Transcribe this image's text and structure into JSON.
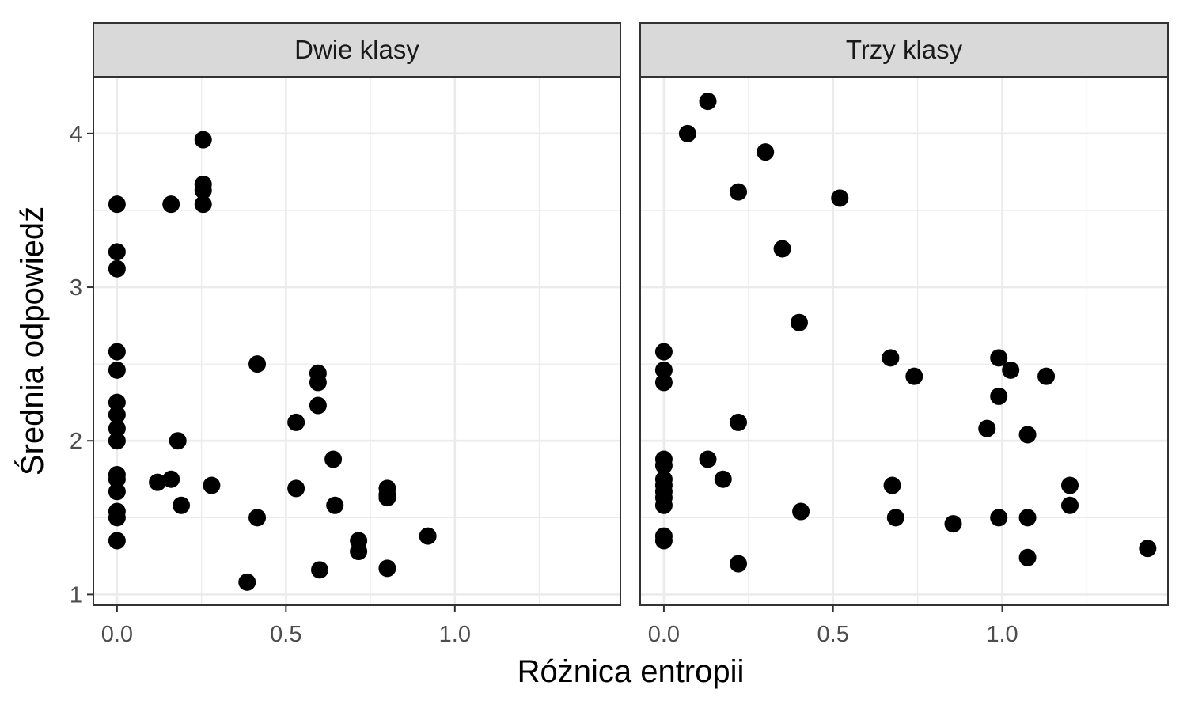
{
  "chart_data": {
    "type": "scatter",
    "xlabel": "Różnica entropii",
    "ylabel": "Średnia odpowiedź",
    "xlim": [
      -0.07,
      1.49
    ],
    "ylim": [
      0.93,
      4.37
    ],
    "x_ticks": [
      "0.0",
      "0.5",
      "1.0"
    ],
    "x_tick_values": [
      0.0,
      0.5,
      1.0
    ],
    "y_ticks": [
      "1",
      "2",
      "3",
      "4"
    ],
    "y_tick_values": [
      1,
      2,
      3,
      4
    ],
    "grid": true,
    "point_color": "#000000",
    "panel_border_color": "#333333",
    "strip_fill": "#d9d9d9",
    "grid_color": "#ebebeb",
    "facets": [
      {
        "strip_label": "Dwie klasy",
        "points": [
          [
            0.0,
            3.54
          ],
          [
            0.0,
            3.23
          ],
          [
            0.0,
            3.12
          ],
          [
            0.0,
            2.58
          ],
          [
            0.0,
            2.46
          ],
          [
            0.0,
            2.25
          ],
          [
            0.0,
            2.17
          ],
          [
            0.0,
            2.08
          ],
          [
            0.0,
            2.0
          ],
          [
            0.0,
            1.78
          ],
          [
            0.0,
            1.75
          ],
          [
            0.0,
            1.67
          ],
          [
            0.0,
            1.54
          ],
          [
            0.0,
            1.5
          ],
          [
            0.0,
            1.35
          ],
          [
            0.12,
            1.73
          ],
          [
            0.16,
            1.75
          ],
          [
            0.16,
            3.54
          ],
          [
            0.18,
            2.0
          ],
          [
            0.19,
            1.58
          ],
          [
            0.255,
            3.96
          ],
          [
            0.255,
            3.67
          ],
          [
            0.255,
            3.63
          ],
          [
            0.255,
            3.54
          ],
          [
            0.28,
            1.71
          ],
          [
            0.385,
            1.08
          ],
          [
            0.415,
            2.5
          ],
          [
            0.415,
            1.5
          ],
          [
            0.53,
            2.12
          ],
          [
            0.53,
            1.69
          ],
          [
            0.595,
            2.44
          ],
          [
            0.595,
            2.38
          ],
          [
            0.595,
            2.23
          ],
          [
            0.6,
            1.16
          ],
          [
            0.64,
            1.88
          ],
          [
            0.645,
            1.58
          ],
          [
            0.715,
            1.35
          ],
          [
            0.715,
            1.28
          ],
          [
            0.8,
            1.69
          ],
          [
            0.8,
            1.65
          ],
          [
            0.8,
            1.63
          ],
          [
            0.8,
            1.17
          ],
          [
            0.92,
            1.38
          ]
        ]
      },
      {
        "strip_label": "Trzy klasy",
        "points": [
          [
            0.0,
            2.58
          ],
          [
            0.0,
            2.46
          ],
          [
            0.0,
            2.38
          ],
          [
            0.0,
            1.88
          ],
          [
            0.0,
            1.84
          ],
          [
            0.0,
            1.75
          ],
          [
            0.0,
            1.71
          ],
          [
            0.0,
            1.67
          ],
          [
            0.0,
            1.63
          ],
          [
            0.0,
            1.58
          ],
          [
            0.0,
            1.38
          ],
          [
            0.0,
            1.35
          ],
          [
            0.07,
            4.0
          ],
          [
            0.13,
            4.21
          ],
          [
            0.13,
            1.88
          ],
          [
            0.175,
            1.75
          ],
          [
            0.22,
            3.62
          ],
          [
            0.22,
            2.12
          ],
          [
            0.22,
            1.2
          ],
          [
            0.3,
            3.88
          ],
          [
            0.35,
            3.25
          ],
          [
            0.4,
            2.77
          ],
          [
            0.405,
            1.54
          ],
          [
            0.52,
            3.58
          ],
          [
            0.67,
            2.54
          ],
          [
            0.675,
            1.71
          ],
          [
            0.685,
            1.5
          ],
          [
            0.74,
            2.42
          ],
          [
            0.855,
            1.46
          ],
          [
            0.955,
            2.08
          ],
          [
            0.99,
            2.54
          ],
          [
            0.99,
            2.29
          ],
          [
            0.99,
            1.5
          ],
          [
            1.025,
            2.46
          ],
          [
            1.075,
            2.04
          ],
          [
            1.075,
            1.5
          ],
          [
            1.075,
            1.24
          ],
          [
            1.13,
            2.42
          ],
          [
            1.2,
            1.71
          ],
          [
            1.2,
            1.58
          ],
          [
            1.43,
            1.3
          ]
        ]
      }
    ]
  }
}
